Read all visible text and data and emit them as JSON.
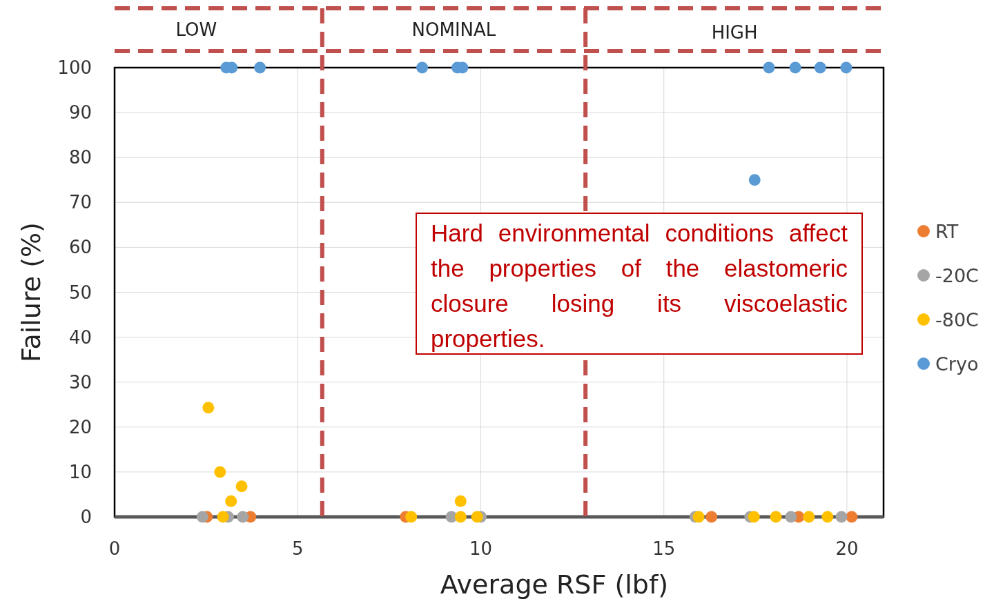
{
  "chart_data": {
    "type": "scatter",
    "xlabel": "Average RSF (lbf)",
    "ylabel": "Failure (%)",
    "xlim": [
      0,
      21
    ],
    "xticks": [
      0,
      5,
      10,
      15,
      20
    ],
    "ylim": [
      0,
      100
    ],
    "yticks": [
      0,
      10,
      20,
      30,
      40,
      50,
      60,
      70,
      80,
      90,
      100
    ],
    "grid": true,
    "legend": "right",
    "marker": "circle",
    "series": [
      {
        "name": "RT",
        "color": "#ed7d31",
        "x": [
          2.52,
          3.71,
          7.95,
          16.3,
          18.68,
          20.13
        ],
        "values": [
          0,
          0,
          0,
          0,
          0,
          0
        ]
      },
      {
        "name": "-20C",
        "color": "#a5a5a5",
        "x": [
          2.4,
          3.1,
          3.5,
          9.2,
          10.0,
          15.86,
          17.36,
          18.47,
          19.85
        ],
        "values": [
          0,
          0,
          0,
          0,
          0,
          0,
          0,
          0,
          0
        ]
      },
      {
        "name": "-80C",
        "color": "#ffc000",
        "x": [
          2.56,
          2.88,
          3.47,
          3.18,
          2.96,
          8.1,
          9.45,
          9.45,
          9.9,
          15.95,
          17.46,
          18.06,
          18.96,
          19.47
        ],
        "values": [
          24.3,
          10,
          6.8,
          3.5,
          0,
          0,
          3.5,
          0,
          0,
          0,
          0,
          0,
          0,
          0
        ]
      },
      {
        "name": "Cryo",
        "color": "#5b9bd5",
        "x": [
          3.05,
          3.2,
          3.97,
          8.4,
          9.36,
          9.5,
          17.48,
          17.87,
          18.59,
          19.27,
          19.98
        ],
        "values": [
          100,
          100,
          100,
          100,
          100,
          100,
          75,
          100,
          100,
          100,
          100
        ]
      }
    ],
    "ref_lines": [
      {
        "axis": "x",
        "value": 5.67,
        "color": "#c0504d",
        "line_style": "dashed"
      },
      {
        "axis": "x",
        "value": 12.86,
        "color": "#c0504d",
        "line_style": "dashed"
      }
    ],
    "annotations": [
      "LOW",
      "NOMINAL",
      "HIGH",
      "Hard environmental conditions affect the properties of the elastomeric closure losing its viscoelastic properties."
    ]
  }
}
